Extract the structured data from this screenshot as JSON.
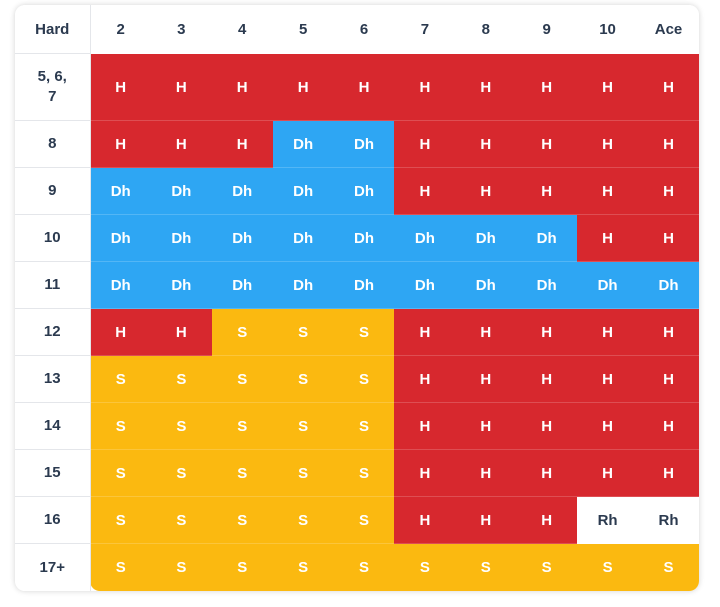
{
  "corner_label": "Hard",
  "dealer_cards": [
    "2",
    "3",
    "4",
    "5",
    "6",
    "7",
    "8",
    "9",
    "10",
    "Ace"
  ],
  "rows": [
    {
      "hand": "5, 6, 7",
      "actions": [
        "H",
        "H",
        "H",
        "H",
        "H",
        "H",
        "H",
        "H",
        "H",
        "H"
      ]
    },
    {
      "hand": "8",
      "actions": [
        "H",
        "H",
        "H",
        "Dh",
        "Dh",
        "H",
        "H",
        "H",
        "H",
        "H"
      ]
    },
    {
      "hand": "9",
      "actions": [
        "Dh",
        "Dh",
        "Dh",
        "Dh",
        "Dh",
        "H",
        "H",
        "H",
        "H",
        "H"
      ]
    },
    {
      "hand": "10",
      "actions": [
        "Dh",
        "Dh",
        "Dh",
        "Dh",
        "Dh",
        "Dh",
        "Dh",
        "Dh",
        "H",
        "H"
      ]
    },
    {
      "hand": "11",
      "actions": [
        "Dh",
        "Dh",
        "Dh",
        "Dh",
        "Dh",
        "Dh",
        "Dh",
        "Dh",
        "Dh",
        "Dh"
      ]
    },
    {
      "hand": "12",
      "actions": [
        "H",
        "H",
        "S",
        "S",
        "S",
        "H",
        "H",
        "H",
        "H",
        "H"
      ]
    },
    {
      "hand": "13",
      "actions": [
        "S",
        "S",
        "S",
        "S",
        "S",
        "H",
        "H",
        "H",
        "H",
        "H"
      ]
    },
    {
      "hand": "14",
      "actions": [
        "S",
        "S",
        "S",
        "S",
        "S",
        "H",
        "H",
        "H",
        "H",
        "H"
      ]
    },
    {
      "hand": "15",
      "actions": [
        "S",
        "S",
        "S",
        "S",
        "S",
        "H",
        "H",
        "H",
        "H",
        "H"
      ]
    },
    {
      "hand": "16",
      "actions": [
        "S",
        "S",
        "S",
        "S",
        "S",
        "H",
        "H",
        "H",
        "Rh",
        "Rh"
      ]
    },
    {
      "hand": "17+",
      "actions": [
        "S",
        "S",
        "S",
        "S",
        "S",
        "S",
        "S",
        "S",
        "S",
        "S"
      ]
    }
  ],
  "colors": {
    "H": "#d7282e",
    "Dh": "#2ea6f3",
    "S": "#fbb910",
    "Rh": "#ffffff",
    "header_text": "#2b3a4f"
  }
}
